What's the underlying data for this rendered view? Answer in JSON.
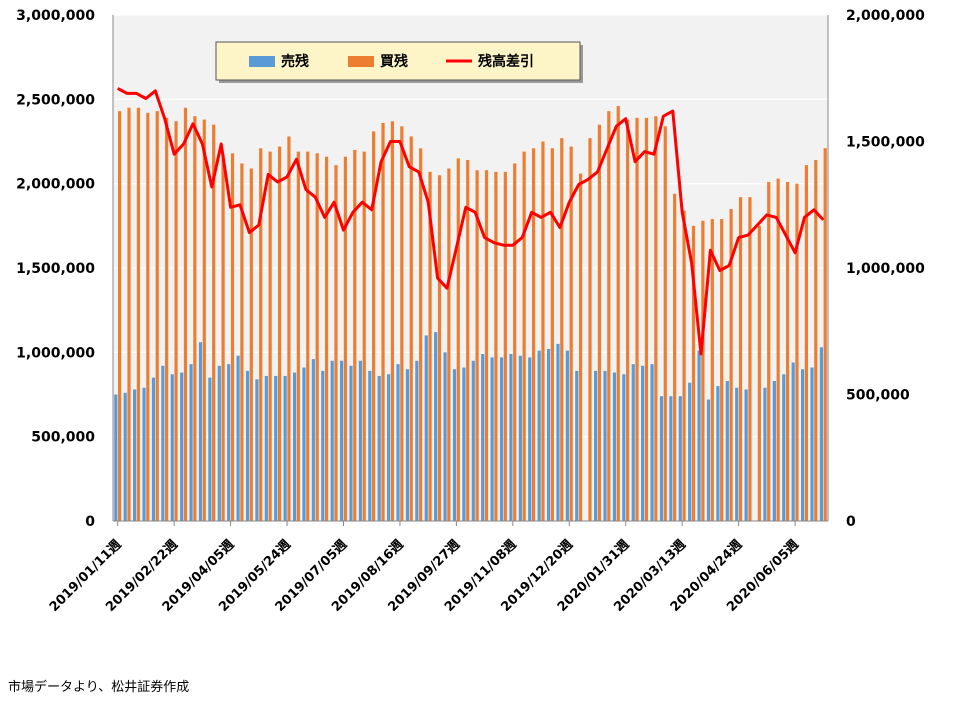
{
  "chart_data": {
    "type": "bar",
    "x_tick_labels": [
      "2019/01/11週",
      "2019/02/22週",
      "2019/04/05週",
      "2019/05/24週",
      "2019/07/05週",
      "2019/08/16週",
      "2019/09/27週",
      "2019/11/08週",
      "2019/12/20週",
      "2020/01/31週",
      "2020/03/13週",
      "2020/04/24週",
      "2020/06/05週"
    ],
    "x_tick_every": 6,
    "primary_axis": {
      "min": 0,
      "max": 3000000,
      "ticks": [
        0,
        500000,
        1000000,
        1500000,
        2000000,
        2500000,
        3000000
      ],
      "tick_labels": [
        "0",
        "500,000",
        "1,000,000",
        "1,500,000",
        "2,000,000",
        "2,500,000",
        "3,000,000"
      ]
    },
    "secondary_axis": {
      "min": 0,
      "max": 2000000,
      "ticks": [
        0,
        500000,
        1000000,
        1500000,
        2000000
      ],
      "tick_labels": [
        "0",
        "500,000",
        "1,000,000",
        "1,500,000",
        "2,000,000"
      ]
    },
    "legend": {
      "position": "top-center",
      "items": [
        "売残",
        "買残",
        "残高差引"
      ]
    },
    "colors": {
      "sell": "#5b9bd5",
      "buy": "#ed7d31",
      "diff": "#ff0000",
      "plot_bg": "#f2f2f2",
      "legend_bg": "#fdf5c8"
    },
    "series": [
      {
        "name": "売残",
        "axis": "primary",
        "type": "bar",
        "values": [
          750000,
          760000,
          780000,
          790000,
          850000,
          920000,
          870000,
          880000,
          930000,
          1060000,
          850000,
          920000,
          930000,
          980000,
          890000,
          840000,
          860000,
          860000,
          860000,
          880000,
          910000,
          960000,
          890000,
          950000,
          950000,
          920000,
          950000,
          890000,
          860000,
          870000,
          930000,
          900000,
          950000,
          1100000,
          1120000,
          1000000,
          900000,
          910000,
          950000,
          990000,
          970000,
          970000,
          990000,
          980000,
          970000,
          1010000,
          1020000,
          1050000,
          1010000,
          890000,
          0,
          890000,
          890000,
          880000,
          870000,
          930000,
          920000,
          930000,
          740000,
          740000,
          740000,
          820000,
          1010000,
          720000,
          800000,
          830000,
          790000,
          780000,
          0,
          790000,
          830000,
          870000,
          940000,
          900000,
          910000,
          1030000
        ]
      },
      {
        "name": "買残",
        "axis": "primary",
        "type": "bar",
        "values": [
          2430000,
          2450000,
          2450000,
          2420000,
          2430000,
          2390000,
          2370000,
          2450000,
          2400000,
          2380000,
          2350000,
          2170000,
          2180000,
          2120000,
          2090000,
          2210000,
          2190000,
          2220000,
          2280000,
          2190000,
          2190000,
          2180000,
          2160000,
          2110000,
          2160000,
          2200000,
          2190000,
          2310000,
          2360000,
          2370000,
          2340000,
          2280000,
          2210000,
          2070000,
          2050000,
          2090000,
          2150000,
          2140000,
          2080000,
          2080000,
          2070000,
          2070000,
          2120000,
          2190000,
          2210000,
          2250000,
          2210000,
          2270000,
          2220000,
          2060000,
          2270000,
          2350000,
          2430000,
          2460000,
          2380000,
          2390000,
          2390000,
          2400000,
          2340000,
          1940000,
          1840000,
          1750000,
          1780000,
          1790000,
          1790000,
          1850000,
          1920000,
          1920000,
          1750000,
          2010000,
          2030000,
          2010000,
          2000000,
          2110000,
          2140000,
          2210000
        ]
      },
      {
        "name": "残高差引",
        "axis": "secondary",
        "type": "line",
        "values": [
          1710000,
          1690000,
          1690000,
          1670000,
          1700000,
          1590000,
          1450000,
          1490000,
          1570000,
          1490000,
          1320000,
          1490000,
          1240000,
          1250000,
          1140000,
          1170000,
          1370000,
          1340000,
          1360000,
          1430000,
          1310000,
          1280000,
          1200000,
          1260000,
          1150000,
          1220000,
          1260000,
          1230000,
          1420000,
          1500000,
          1500000,
          1400000,
          1380000,
          1260000,
          960000,
          920000,
          1080000,
          1240000,
          1220000,
          1120000,
          1100000,
          1090000,
          1090000,
          1120000,
          1220000,
          1200000,
          1220000,
          1160000,
          1260000,
          1330000,
          1350000,
          1380000,
          1470000,
          1560000,
          1590000,
          1420000,
          1460000,
          1450000,
          1600000,
          1620000,
          1220000,
          1020000,
          660000,
          1070000,
          990000,
          1010000,
          1120000,
          1130000,
          1170000,
          1210000,
          1200000,
          1130000,
          1060000,
          1200000,
          1230000,
          1190000
        ]
      }
    ]
  },
  "footer": {
    "source": "市場データより、松井証券作成"
  }
}
